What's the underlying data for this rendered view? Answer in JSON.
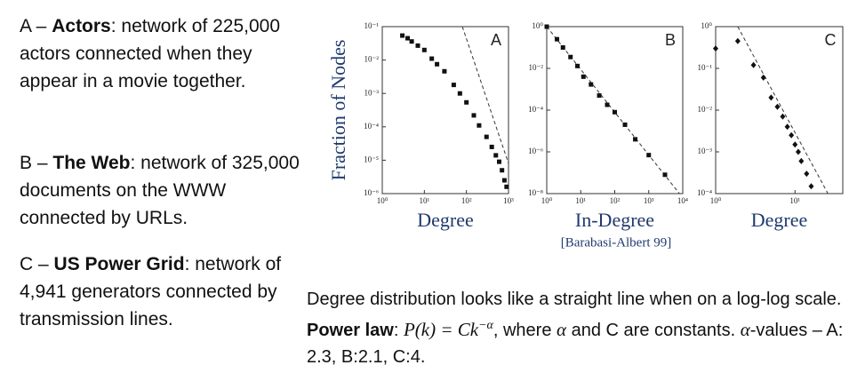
{
  "descriptions": [
    {
      "label": "A –",
      "name": "Actors",
      "text": ": network of 225,000 actors connected when they appear in a movie together."
    },
    {
      "label": "B –",
      "name": "The Web",
      "text": ": network of 325,000 documents on the WWW connected by URLs."
    },
    {
      "label": "C –",
      "name": "US Power Grid",
      "text": ": network of 4,941 generators connected by transmission lines."
    }
  ],
  "citation": "[Barabasi-Albert 99]",
  "summary": [
    {
      "text": "Degree distribution looks like a straight line when on a log-log scale. ",
      "style": "plain"
    },
    {
      "text": "Power law",
      "style": "bold"
    },
    {
      "text": ": ",
      "style": "plain"
    },
    {
      "text": "P(k) = Ck",
      "style": "math"
    },
    {
      "text": "−α",
      "style": "sup"
    },
    {
      "text": ", where ",
      "style": "plain"
    },
    {
      "text": "α",
      "style": "math"
    },
    {
      "text": " and C are constants. ",
      "style": "plain"
    },
    {
      "text": "α",
      "style": "math"
    },
    {
      "text": "-values – A: 2.3, B:2.1, C:4.",
      "style": "plain"
    }
  ],
  "chart_data": [
    {
      "type": "scatter",
      "annotation": "A",
      "xlabel": "Degree",
      "ylabel": "Fraction of Nodes",
      "log_x": true,
      "log_y": true,
      "marker": "square",
      "color": "#111111",
      "xlim": [
        1,
        1000
      ],
      "ylim": [
        1e-06,
        0.1
      ],
      "xticks": [
        {
          "value": 1,
          "label": "10⁰"
        },
        {
          "value": 10,
          "label": "10¹"
        },
        {
          "value": 100,
          "label": "10²"
        },
        {
          "value": 1000,
          "label": "10³"
        }
      ],
      "yticks": [
        {
          "value": 0.1,
          "label": "10⁻¹"
        },
        {
          "value": 0.01,
          "label": "10⁻²"
        },
        {
          "value": 0.001,
          "label": "10⁻³"
        },
        {
          "value": 0.0001,
          "label": "10⁻⁴"
        },
        {
          "value": 1e-05,
          "label": "10⁻⁵"
        },
        {
          "value": 1e-06,
          "label": "10⁻⁶"
        }
      ],
      "x": [
        3,
        4,
        5,
        7,
        10,
        15,
        20,
        30,
        50,
        70,
        100,
        150,
        200,
        300,
        400,
        500,
        600,
        700,
        800,
        900
      ],
      "y": [
        0.054,
        0.045,
        0.036,
        0.027,
        0.02,
        0.011,
        0.0075,
        0.0046,
        0.0018,
        0.001,
        0.00054,
        0.00022,
        0.00011,
        5e-05,
        2.5e-05,
        1.4e-05,
        9e-06,
        5e-06,
        2.5e-06,
        1.6e-06
      ],
      "fit": {
        "x": [
          80,
          1000
        ],
        "y": [
          0.1,
          8e-06
        ]
      }
    },
    {
      "type": "scatter",
      "annotation": "B",
      "xlabel": "In-Degree",
      "log_x": true,
      "log_y": true,
      "marker": "square",
      "color": "#111111",
      "xlim": [
        1,
        10000
      ],
      "ylim": [
        1e-08,
        1
      ],
      "xticks": [
        {
          "value": 1,
          "label": "10⁰"
        },
        {
          "value": 10,
          "label": "10¹"
        },
        {
          "value": 100,
          "label": "10²"
        },
        {
          "value": 1000,
          "label": "10³"
        },
        {
          "value": 10000,
          "label": "10⁴"
        }
      ],
      "yticks": [
        {
          "value": 1,
          "label": "10⁰"
        },
        {
          "value": 0.01,
          "label": "10⁻²"
        },
        {
          "value": 0.0001,
          "label": "10⁻⁴"
        },
        {
          "value": 1e-06,
          "label": "10⁻⁶"
        },
        {
          "value": 1e-08,
          "label": "10⁻⁸"
        }
      ],
      "x": [
        1,
        2,
        3,
        5,
        8,
        12,
        20,
        35,
        60,
        100,
        200,
        400,
        1000,
        3000
      ],
      "y": [
        1,
        0.25,
        0.1,
        0.035,
        0.013,
        0.004,
        0.0017,
        0.0005,
        0.00018,
        8e-05,
        2e-05,
        4e-06,
        7e-07,
        8e-08
      ],
      "fit": {
        "x": [
          1,
          8000
        ],
        "y": [
          1,
          1e-08
        ]
      }
    },
    {
      "type": "scatter",
      "annotation": "C",
      "xlabel": "Degree",
      "log_x": true,
      "log_y": true,
      "marker": "diamond",
      "color": "#111111",
      "xlim": [
        1,
        40
      ],
      "ylim": [
        0.0001,
        1
      ],
      "xticks": [
        {
          "value": 1,
          "label": "10⁰"
        },
        {
          "value": 10,
          "label": "10¹"
        }
      ],
      "yticks": [
        {
          "value": 1,
          "label": "10⁰"
        },
        {
          "value": 0.1,
          "label": "10⁻¹"
        },
        {
          "value": 0.01,
          "label": "10⁻²"
        },
        {
          "value": 0.001,
          "label": "10⁻³"
        },
        {
          "value": 0.0001,
          "label": "10⁻⁴"
        }
      ],
      "x": [
        1,
        1.9,
        3,
        4,
        5,
        6,
        7,
        8,
        9,
        10,
        11,
        12,
        14,
        16
      ],
      "y": [
        0.3,
        0.45,
        0.12,
        0.06,
        0.02,
        0.012,
        0.007,
        0.004,
        0.0025,
        0.0015,
        0.001,
        0.0006,
        0.0003,
        0.00015
      ],
      "fit": {
        "x": [
          1.9,
          26
        ],
        "y": [
          1,
          0.0001
        ]
      }
    }
  ]
}
